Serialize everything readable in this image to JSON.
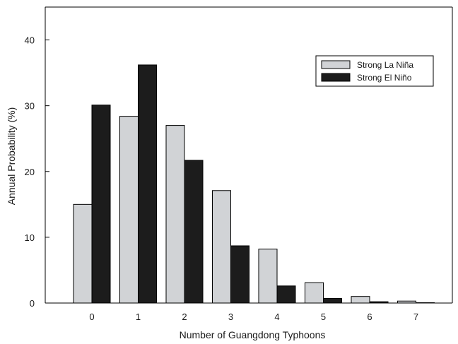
{
  "chart_data": {
    "type": "bar",
    "xlabel": "Number of Guangdong Typhoons",
    "ylabel": "Annual Probability  (%)",
    "categories": [
      "0",
      "1",
      "2",
      "3",
      "4",
      "5",
      "6",
      "7"
    ],
    "ylim": [
      0,
      45
    ],
    "yticks": [
      "0",
      "10",
      "20",
      "30",
      "40"
    ],
    "grid": false,
    "legend_position": "top-right",
    "series": [
      {
        "name": "Strong La Niña",
        "color": "#d1d3d6",
        "values": [
          15.0,
          28.4,
          27.0,
          17.1,
          8.2,
          3.1,
          1.0,
          0.3
        ]
      },
      {
        "name": "Strong El Niño",
        "color": "#1c1c1c",
        "values": [
          30.1,
          36.2,
          21.7,
          8.7,
          2.6,
          0.7,
          0.2,
          0.05
        ]
      }
    ]
  }
}
